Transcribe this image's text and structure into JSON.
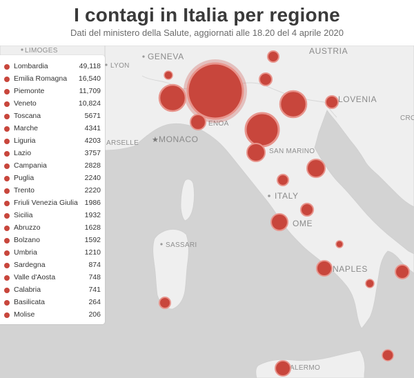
{
  "header": {
    "title": "I contagi in Italia per regione",
    "subtitle": "Dati del ministero della Salute, aggiornati alle 18.20 del 4 aprile 2020"
  },
  "colors": {
    "bubble": "#c8463c",
    "land": "#efefef",
    "sea": "#d3d3d3"
  },
  "places": {
    "limoges": "LIMOGES",
    "lyon": "LYON",
    "geneva": "GENEVA",
    "austria": "AUSTRIA",
    "slovenia": "LOVENIA",
    "croatia": "CROA",
    "monaco": "MONACO",
    "marseille": "ARSELLE",
    "genoa": "ENOA",
    "san_marino": "SAN MARINO",
    "italy": "ITALY",
    "rome": "OME",
    "sassari": "SASSARI",
    "naples": "NAPLES",
    "palermo": "ALERMO"
  },
  "legend": [
    {
      "name": "Lombardia",
      "value": "49,118"
    },
    {
      "name": "Emilia Romagna",
      "value": "16,540"
    },
    {
      "name": "Piemonte",
      "value": "11,709"
    },
    {
      "name": "Veneto",
      "value": "10,824"
    },
    {
      "name": "Toscana",
      "value": "5671"
    },
    {
      "name": "Marche",
      "value": "4341"
    },
    {
      "name": "Liguria",
      "value": "4203"
    },
    {
      "name": "Lazio",
      "value": "3757"
    },
    {
      "name": "Campania",
      "value": "2828"
    },
    {
      "name": "Puglia",
      "value": "2240"
    },
    {
      "name": "Trento",
      "value": "2220"
    },
    {
      "name": "Friuli Venezia Giulia",
      "value": "1986"
    },
    {
      "name": "Sicilia",
      "value": "1932"
    },
    {
      "name": "Abruzzo",
      "value": "1628"
    },
    {
      "name": "Bolzano",
      "value": "1592"
    },
    {
      "name": "Umbria",
      "value": "1210"
    },
    {
      "name": "Sardegna",
      "value": "874"
    },
    {
      "name": "Valle d'Aosta",
      "value": "748"
    },
    {
      "name": "Calabria",
      "value": "741"
    },
    {
      "name": "Basilicata",
      "value": "264"
    },
    {
      "name": "Molise",
      "value": "206"
    }
  ],
  "chart_data": {
    "type": "bubble-map",
    "title": "I contagi in Italia per regione",
    "subtitle": "Dati del ministero della Salute, aggiornati alle 18.20 del 4 aprile 2020",
    "regions": [
      {
        "name": "Lombardia",
        "value": 49118
      },
      {
        "name": "Emilia Romagna",
        "value": 16540
      },
      {
        "name": "Piemonte",
        "value": 11709
      },
      {
        "name": "Veneto",
        "value": 10824
      },
      {
        "name": "Toscana",
        "value": 5671
      },
      {
        "name": "Marche",
        "value": 4341
      },
      {
        "name": "Liguria",
        "value": 4203
      },
      {
        "name": "Lazio",
        "value": 3757
      },
      {
        "name": "Campania",
        "value": 2828
      },
      {
        "name": "Puglia",
        "value": 2240
      },
      {
        "name": "Trento",
        "value": 2220
      },
      {
        "name": "Friuli Venezia Giulia",
        "value": 1986
      },
      {
        "name": "Sicilia",
        "value": 1932
      },
      {
        "name": "Abruzzo",
        "value": 1628
      },
      {
        "name": "Bolzano",
        "value": 1592
      },
      {
        "name": "Umbria",
        "value": 1210
      },
      {
        "name": "Sardegna",
        "value": 874
      },
      {
        "name": "Valle d'Aosta",
        "value": 748
      },
      {
        "name": "Calabria",
        "value": 741
      },
      {
        "name": "Basilicata",
        "value": 264
      },
      {
        "name": "Molise",
        "value": 206
      }
    ],
    "legend_position": "left"
  }
}
